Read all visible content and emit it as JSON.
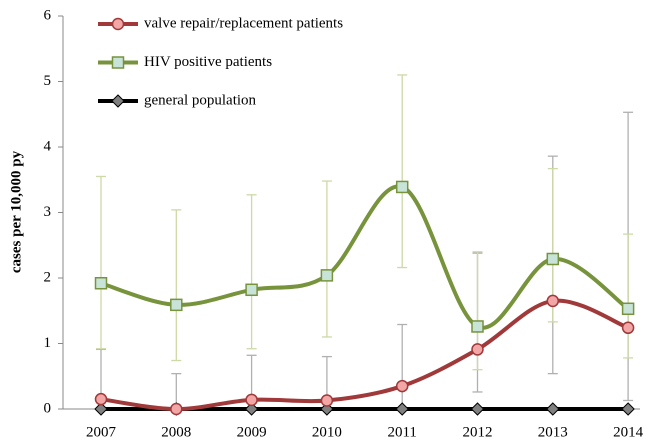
{
  "chart_data": {
    "type": "line",
    "y_label": "cases per 10,000 py",
    "categories": [
      "2007",
      "2008",
      "2009",
      "2010",
      "2011",
      "2012",
      "2013",
      "2014"
    ],
    "series": [
      {
        "name": "valve repair/replacement patients",
        "color": "#a0393a",
        "marker_fill": "#f2a6a6",
        "error_color": "#b0b0b0",
        "marker": "circle",
        "values": [
          0.15,
          0,
          0.14,
          0.13,
          0.35,
          0.91,
          1.65,
          1.24
        ],
        "ci_low": [
          0,
          0,
          0,
          0,
          0,
          0.26,
          0.54,
          0.13
        ],
        "ci_high": [
          0.91,
          0.54,
          0.82,
          0.8,
          1.29,
          2.38,
          3.86,
          4.53
        ]
      },
      {
        "name": "HIV positive patients",
        "color": "#77933c",
        "marker_fill": "#c8e4d8",
        "error_color": "#cdd9a6",
        "marker": "square",
        "values": [
          1.92,
          1.59,
          1.82,
          2.04,
          3.39,
          1.26,
          2.29,
          1.53
        ],
        "ci_low": [
          0.92,
          0.74,
          0.92,
          1.1,
          2.16,
          0.6,
          1.33,
          0.78
        ],
        "ci_high": [
          3.55,
          3.04,
          3.27,
          3.48,
          5.1,
          2.4,
          3.67,
          2.67
        ]
      },
      {
        "name": "general population",
        "color": "#000000",
        "marker_fill": "#808080",
        "marker": "diamond",
        "values": [
          0,
          0,
          0,
          0,
          0,
          0,
          0,
          0
        ]
      }
    ],
    "ylim": [
      0,
      6
    ],
    "yticks": [
      0,
      1,
      2,
      3,
      4,
      5,
      6
    ],
    "grid": false,
    "legend": "upper left"
  }
}
